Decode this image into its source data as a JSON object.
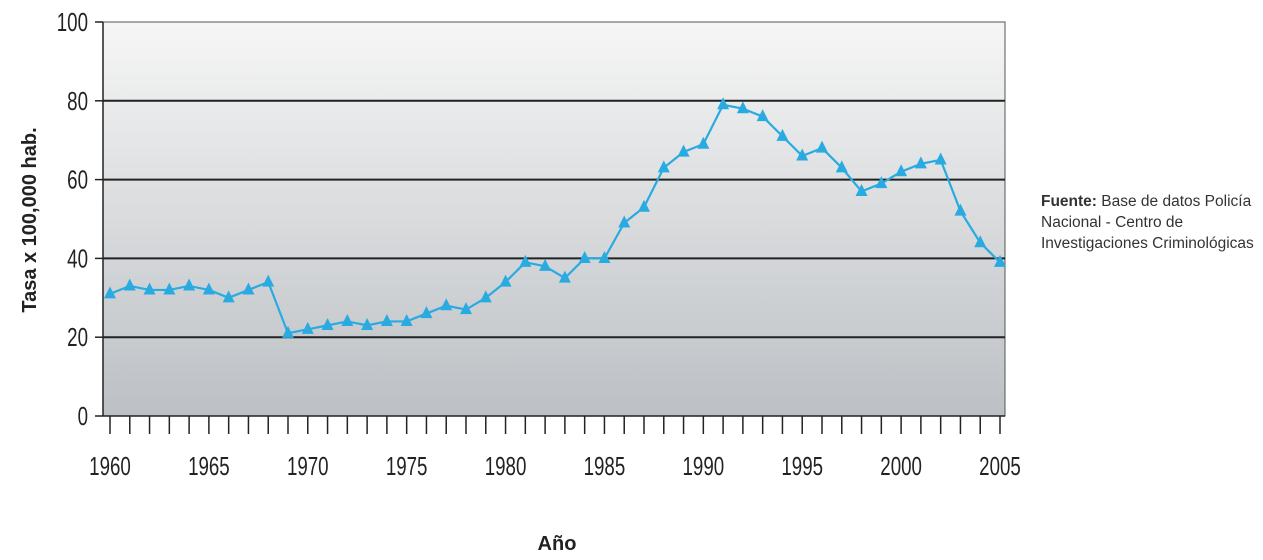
{
  "chart_data": {
    "type": "line",
    "xlabel": "Año",
    "ylabel": "Tasa x 100,000 hab.",
    "xlim": [
      1960,
      2005
    ],
    "ylim": [
      0,
      100
    ],
    "x_ticks": [
      "1960",
      "1965",
      "1970",
      "1975",
      "1980",
      "1985",
      "1990",
      "1995",
      "2000",
      "2005"
    ],
    "y_ticks": [
      "0",
      "20",
      "40",
      "60",
      "80",
      "100"
    ],
    "grid": "horizontal",
    "marker": "triangle",
    "colors": {
      "line": "#29abe2",
      "grid": "#222222",
      "plot_top": "#f6f6f6",
      "plot_bottom": "#bcc0c4"
    },
    "series": [
      {
        "x": [
          1960,
          1961,
          1962,
          1963,
          1964,
          1965,
          1966,
          1967,
          1968,
          1969,
          1970,
          1971,
          1972,
          1973,
          1974,
          1975,
          1976,
          1977,
          1978,
          1979,
          1980,
          1981,
          1982,
          1983,
          1984,
          1985,
          1986,
          1987,
          1988,
          1989,
          1990,
          1991,
          1992,
          1993,
          1994,
          1995,
          1996,
          1997,
          1998,
          1999,
          2000,
          2001,
          2002,
          2003,
          2004,
          2005
        ],
        "values": [
          31,
          33,
          32,
          32,
          33,
          32,
          30,
          32,
          34,
          21,
          22,
          23,
          24,
          23,
          24,
          24,
          26,
          28,
          27,
          30,
          34,
          39,
          38,
          35,
          40,
          40,
          49,
          53,
          63,
          67,
          69,
          79,
          78,
          76,
          71,
          66,
          68,
          63,
          57,
          59,
          62,
          64,
          65,
          52,
          44,
          39
        ]
      }
    ]
  },
  "source": {
    "label": "Fuente:",
    "text": " Base de datos Policía Nacional - Centro de Investigaciones Criminológicas"
  }
}
